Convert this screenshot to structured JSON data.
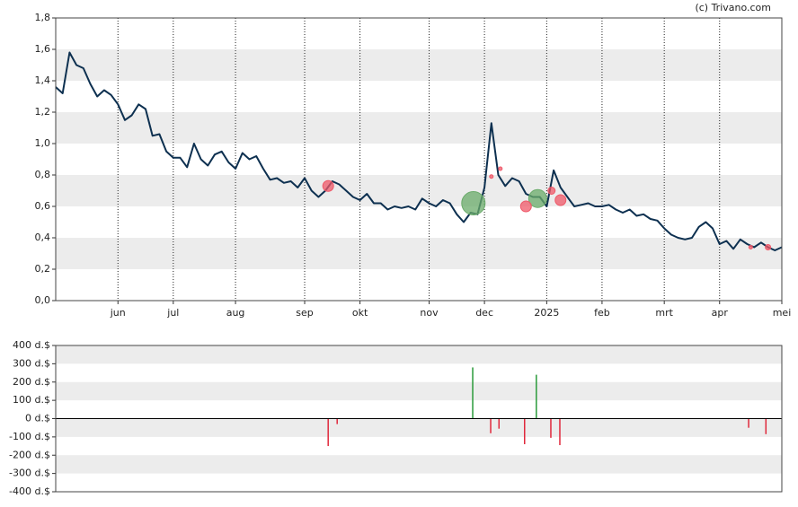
{
  "credit": "(c) Trivano.com",
  "chart_data": [
    {
      "type": "line",
      "grid": "bands",
      "xlim": [
        0,
        105
      ],
      "xticks": [
        {
          "value": 9,
          "label": "jun"
        },
        {
          "value": 17,
          "label": "jul"
        },
        {
          "value": 26,
          "label": "aug"
        },
        {
          "value": 36,
          "label": "sep"
        },
        {
          "value": 44,
          "label": "okt"
        },
        {
          "value": 54,
          "label": "nov"
        },
        {
          "value": 62,
          "label": "dec"
        },
        {
          "value": 71,
          "label": "2025"
        },
        {
          "value": 79,
          "label": "feb"
        },
        {
          "value": 88,
          "label": "mrt"
        },
        {
          "value": 96,
          "label": "apr"
        },
        {
          "value": 105,
          "label": "mei"
        }
      ],
      "ylim": [
        0,
        1.8
      ],
      "yticks": [
        {
          "value": 0,
          "label": "0,0"
        },
        {
          "value": 0.2,
          "label": "0,2"
        },
        {
          "value": 0.4,
          "label": "0,4"
        },
        {
          "value": 0.6,
          "label": "0,6"
        },
        {
          "value": 0.8,
          "label": "0,8"
        },
        {
          "value": 1.0,
          "label": "1,0"
        },
        {
          "value": 1.2,
          "label": "1,2"
        },
        {
          "value": 1.4,
          "label": "1,4"
        },
        {
          "value": 1.6,
          "label": "1,6"
        },
        {
          "value": 1.8,
          "label": "1,8"
        }
      ],
      "series": [
        {
          "color": "#0d3050",
          "values": [
            1.36,
            1.32,
            1.58,
            1.5,
            1.48,
            1.38,
            1.3,
            1.34,
            1.31,
            1.25,
            1.15,
            1.18,
            1.25,
            1.22,
            1.05,
            1.06,
            0.95,
            0.91,
            0.91,
            0.85,
            1.0,
            0.9,
            0.86,
            0.93,
            0.95,
            0.88,
            0.84,
            0.94,
            0.9,
            0.92,
            0.84,
            0.77,
            0.78,
            0.75,
            0.76,
            0.72,
            0.78,
            0.7,
            0.66,
            0.7,
            0.76,
            0.74,
            0.7,
            0.66,
            0.64,
            0.68,
            0.62,
            0.62,
            0.58,
            0.6,
            0.59,
            0.6,
            0.58,
            0.65,
            0.62,
            0.6,
            0.64,
            0.62,
            0.55,
            0.5,
            0.56,
            0.55,
            0.72,
            1.13,
            0.8,
            0.73,
            0.78,
            0.76,
            0.68,
            0.66,
            0.66,
            0.6,
            0.83,
            0.72,
            0.66,
            0.6,
            0.61,
            0.62,
            0.6,
            0.6,
            0.61,
            0.58,
            0.56,
            0.58,
            0.54,
            0.55,
            0.52,
            0.51,
            0.46,
            0.42,
            0.4,
            0.39,
            0.4,
            0.47,
            0.5,
            0.46,
            0.36,
            0.38,
            0.33,
            0.39,
            0.36,
            0.34,
            0.37,
            0.34,
            0.32,
            0.34
          ]
        }
      ],
      "markers": [
        {
          "color": "#6aab6a",
          "x": [
            60.4,
            69.7
          ],
          "y": [
            0.62,
            0.65
          ],
          "size": [
            13,
            10
          ]
        },
        {
          "color": "#ef5868",
          "x": [
            39.4,
            63.0,
            64.3,
            68.0,
            71.7,
            73.0,
            100.5,
            103.0
          ],
          "y": [
            0.73,
            0.79,
            0.84,
            0.6,
            0.7,
            0.64,
            0.34,
            0.34
          ],
          "size": [
            6,
            2,
            2,
            6,
            4,
            6,
            2,
            3
          ]
        }
      ]
    },
    {
      "type": "bar",
      "grid": "bands",
      "xlim": [
        0,
        105
      ],
      "ylim": [
        -400,
        400
      ],
      "yticks": [
        {
          "value": -400,
          "label": "-400 d.$"
        },
        {
          "value": -300,
          "label": "-300 d.$"
        },
        {
          "value": -200,
          "label": "-200 d.$"
        },
        {
          "value": -100,
          "label": "-100 d.$"
        },
        {
          "value": 0,
          "label": "0 d.$"
        },
        {
          "value": 100,
          "label": "100 d.$"
        },
        {
          "value": 200,
          "label": "200 d.$"
        },
        {
          "value": 300,
          "label": "300 d.$"
        },
        {
          "value": 400,
          "label": "400 d.$"
        }
      ],
      "positive_color": "#2a9a3a",
      "negative_color": "#e0283c",
      "x": [
        39.4,
        40.7,
        60.3,
        62.9,
        64.1,
        67.8,
        69.5,
        71.6,
        72.9,
        100.2,
        102.7
      ],
      "values": [
        -150,
        -30,
        280,
        -80,
        -55,
        -140,
        240,
        -105,
        -145,
        -50,
        -85
      ]
    }
  ]
}
